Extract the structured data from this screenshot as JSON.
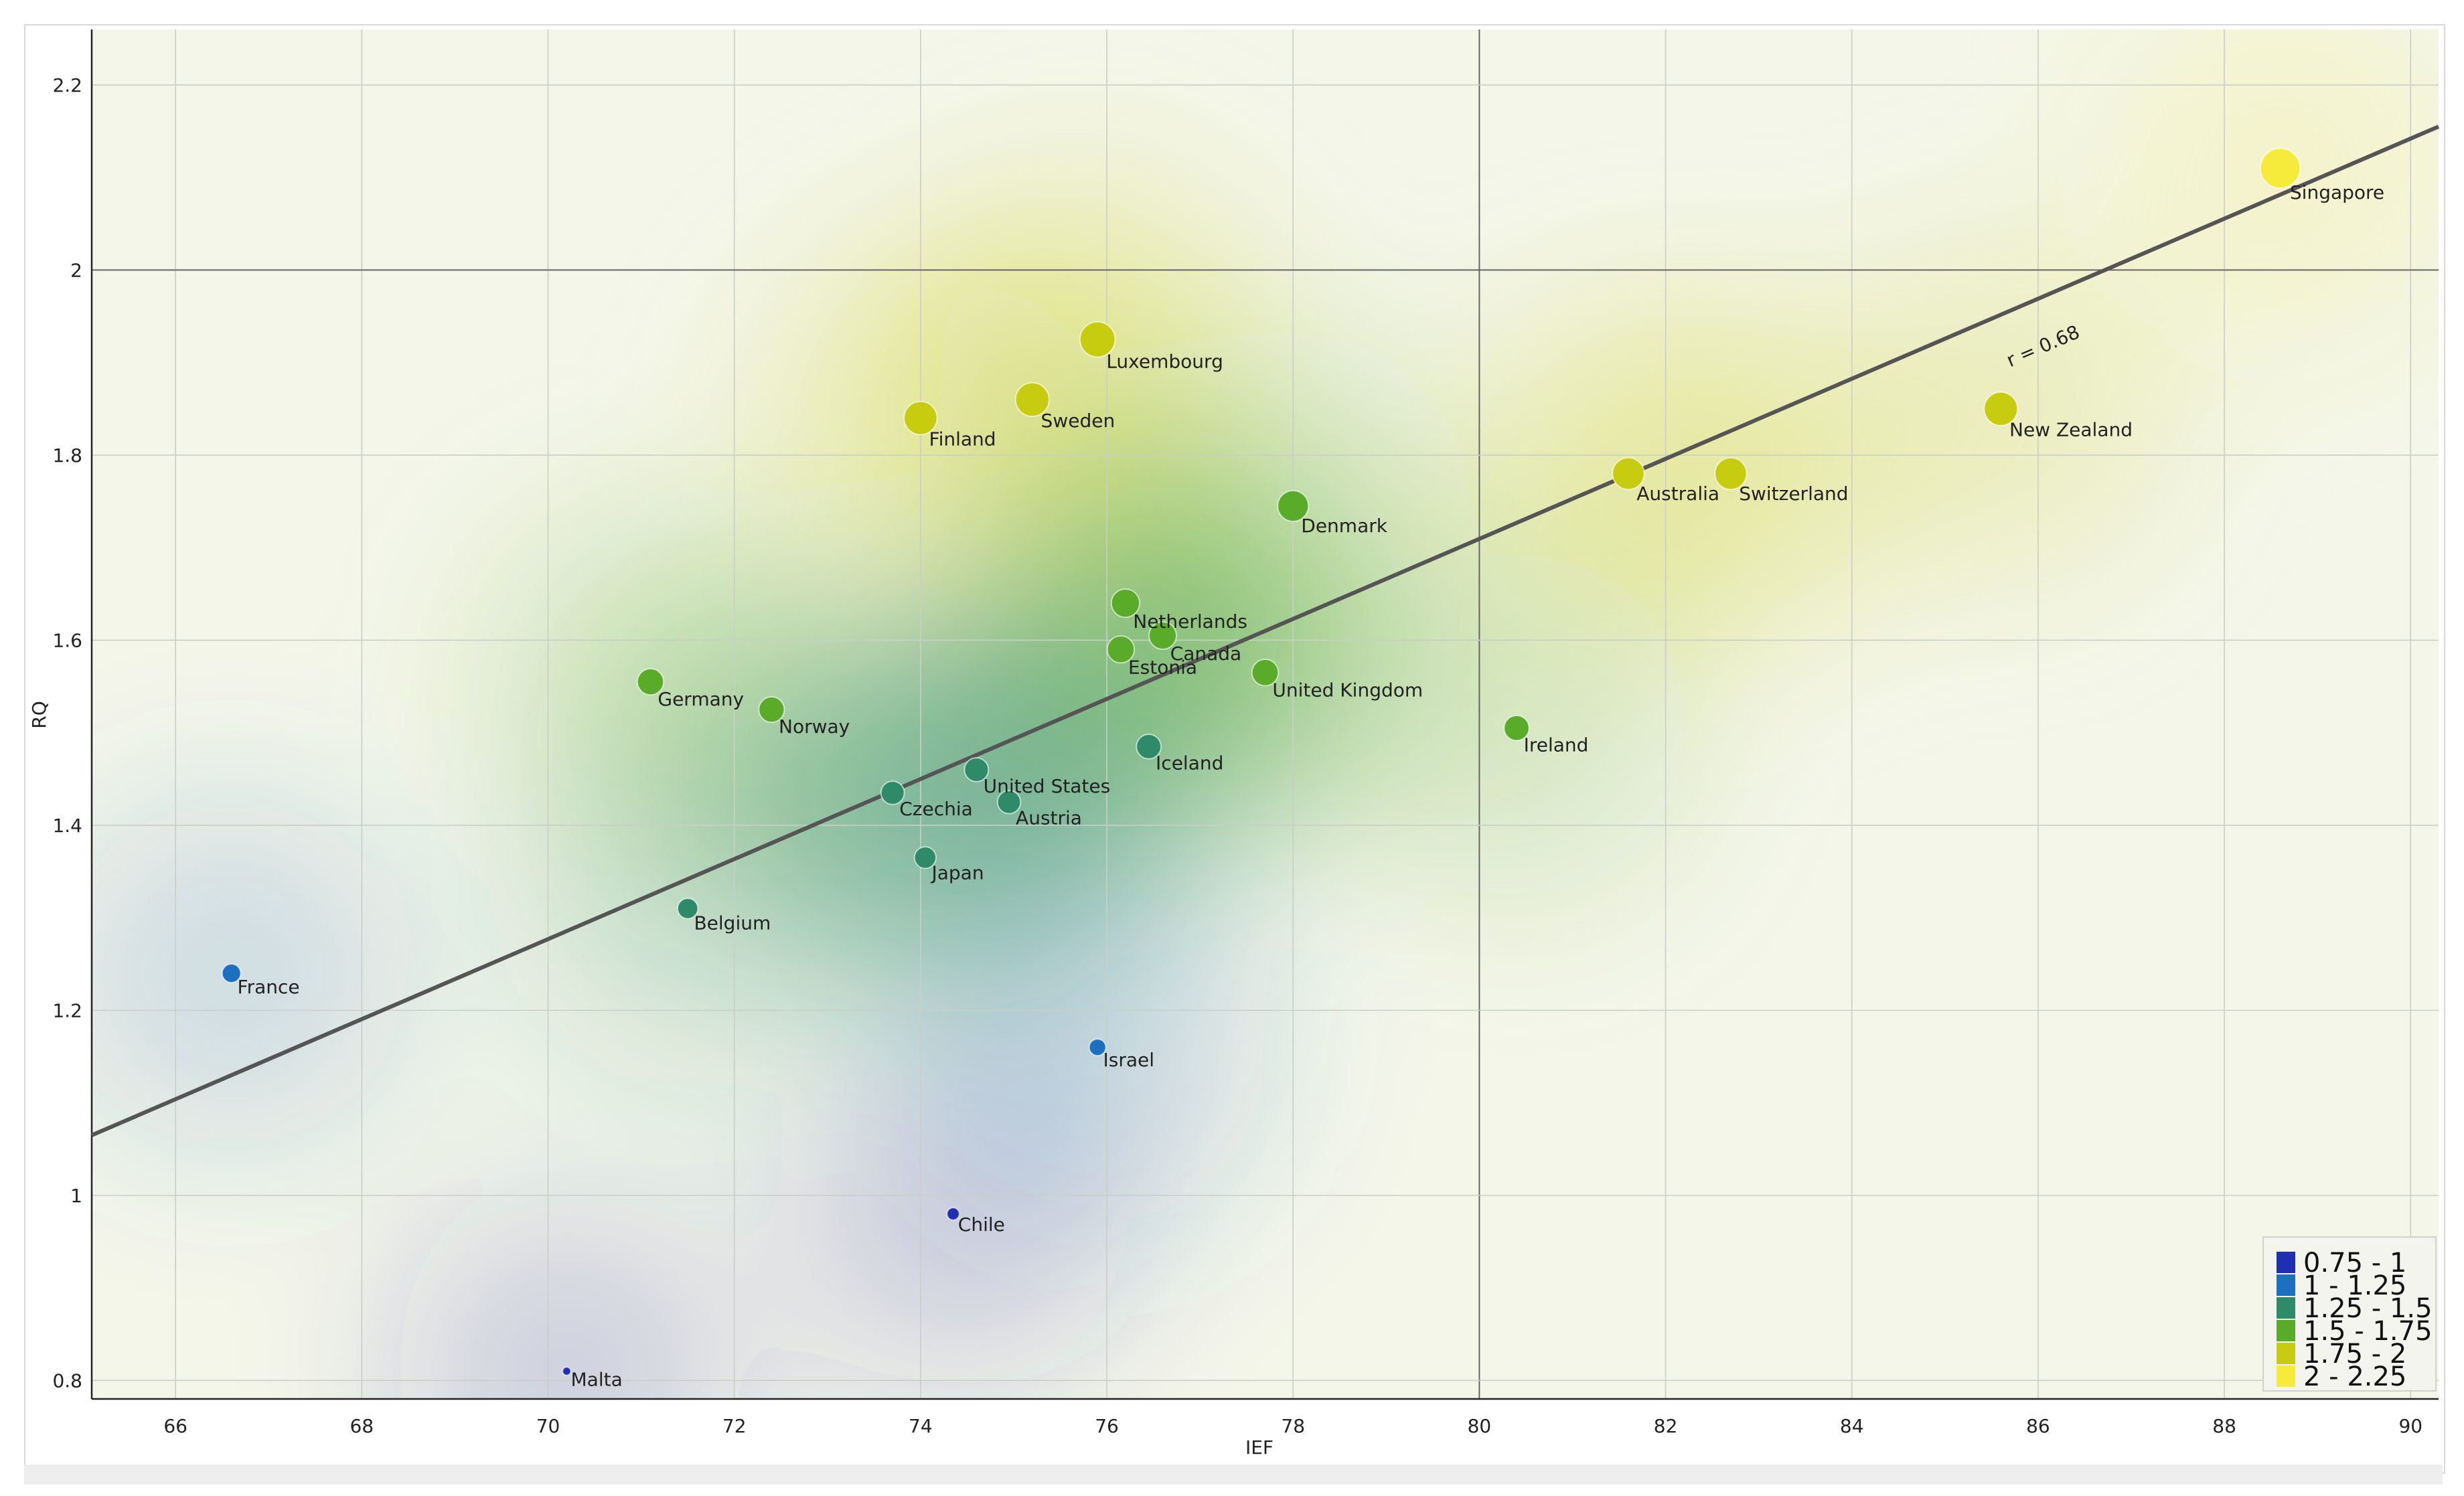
{
  "chart_data": {
    "type": "scatter",
    "xlabel": "IEF",
    "ylabel": "RQ",
    "xlim": [
      65.1,
      90.3
    ],
    "ylim": [
      0.78,
      2.26
    ],
    "xticks": [
      "66",
      "68",
      "70",
      "72",
      "74",
      "76",
      "78",
      "80",
      "82",
      "84",
      "86",
      "88",
      "90"
    ],
    "yticks": [
      "0.8",
      "1",
      "1.2",
      "1.4",
      "1.6",
      "1.8",
      "2",
      "2.2"
    ],
    "grid": true,
    "regression": {
      "label": "r = 0.68",
      "start": [
        65.1,
        1.065
      ],
      "end": [
        90.3,
        2.155
      ]
    },
    "legend": {
      "placement": "bottom-right",
      "items": [
        {
          "label": "0.75 - 1",
          "color": "#1f2fb0"
        },
        {
          "label": "1 - 1.25",
          "color": "#1d6fc0"
        },
        {
          "label": "1.25 - 1.5",
          "color": "#2e8a68"
        },
        {
          "label": "1.5 - 1.75",
          "color": "#5aab2a"
        },
        {
          "label": "1.75 - 2",
          "color": "#c8cc10"
        },
        {
          "label": "2 - 2.25",
          "color": "#f6ea3a"
        }
      ]
    },
    "points": [
      {
        "name": "Singapore",
        "x": 88.6,
        "y": 2.11
      },
      {
        "name": "Luxembourg",
        "x": 75.9,
        "y": 1.925
      },
      {
        "name": "Sweden",
        "x": 75.2,
        "y": 1.86
      },
      {
        "name": "Finland",
        "x": 74.0,
        "y": 1.84
      },
      {
        "name": "New Zealand",
        "x": 85.6,
        "y": 1.85
      },
      {
        "name": "Australia",
        "x": 81.6,
        "y": 1.78
      },
      {
        "name": "Switzerland",
        "x": 82.7,
        "y": 1.78
      },
      {
        "name": "Denmark",
        "x": 78.0,
        "y": 1.745
      },
      {
        "name": "Netherlands",
        "x": 76.2,
        "y": 1.64
      },
      {
        "name": "Canada",
        "x": 76.6,
        "y": 1.605
      },
      {
        "name": "Estonia",
        "x": 76.15,
        "y": 1.59
      },
      {
        "name": "United Kingdom",
        "x": 77.7,
        "y": 1.565
      },
      {
        "name": "Germany",
        "x": 71.1,
        "y": 1.555
      },
      {
        "name": "Norway",
        "x": 72.4,
        "y": 1.525
      },
      {
        "name": "Ireland",
        "x": 80.4,
        "y": 1.505
      },
      {
        "name": "Iceland",
        "x": 76.45,
        "y": 1.485
      },
      {
        "name": "United States",
        "x": 74.6,
        "y": 1.46
      },
      {
        "name": "Czechia",
        "x": 73.7,
        "y": 1.435
      },
      {
        "name": "Austria",
        "x": 74.95,
        "y": 1.425
      },
      {
        "name": "Japan",
        "x": 74.05,
        "y": 1.365
      },
      {
        "name": "Belgium",
        "x": 71.5,
        "y": 1.31
      },
      {
        "name": "France",
        "x": 66.6,
        "y": 1.24
      },
      {
        "name": "Israel",
        "x": 75.9,
        "y": 1.16
      },
      {
        "name": "Chile",
        "x": 74.35,
        "y": 0.98
      },
      {
        "name": "Malta",
        "x": 70.2,
        "y": 0.81
      }
    ]
  }
}
